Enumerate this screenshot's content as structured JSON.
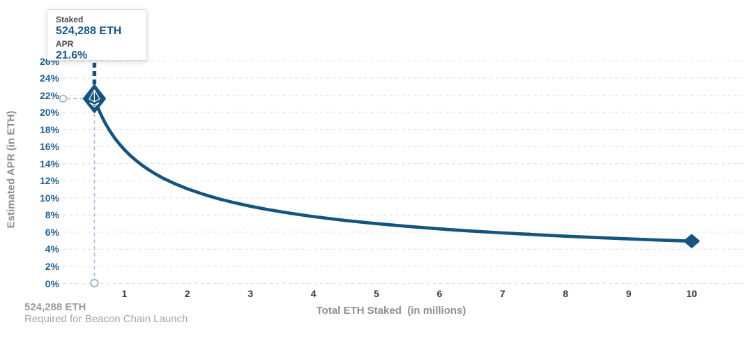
{
  "chart_data": {
    "type": "line",
    "title": "",
    "xlabel": "Total ETH Staked  (in millions)",
    "ylabel": "Estimated APR (in ETH)",
    "xlim": [
      0,
      10.85
    ],
    "ylim": [
      0,
      26
    ],
    "grid": "horizontal-dashed",
    "legend": "none",
    "x_ticks": [
      {
        "value": 1,
        "label": "1"
      },
      {
        "value": 2,
        "label": "2"
      },
      {
        "value": 3,
        "label": "3"
      },
      {
        "value": 4,
        "label": "4"
      },
      {
        "value": 5,
        "label": "5"
      },
      {
        "value": 6,
        "label": "6"
      },
      {
        "value": 7,
        "label": "7"
      },
      {
        "value": 8,
        "label": "8"
      },
      {
        "value": 9,
        "label": "9"
      },
      {
        "value": 10,
        "label": "10"
      }
    ],
    "y_ticks": [
      {
        "value": 0,
        "label": "0%"
      },
      {
        "value": 2,
        "label": "2%"
      },
      {
        "value": 4,
        "label": "4%"
      },
      {
        "value": 6,
        "label": "6%"
      },
      {
        "value": 8,
        "label": "8%"
      },
      {
        "value": 10,
        "label": "10%"
      },
      {
        "value": 12,
        "label": "12%"
      },
      {
        "value": 14,
        "label": "14%"
      },
      {
        "value": 16,
        "label": "16%"
      },
      {
        "value": 18,
        "label": "18%"
      },
      {
        "value": 20,
        "label": "20%"
      },
      {
        "value": 22,
        "label": "22%"
      },
      {
        "value": 24,
        "label": "24%"
      },
      {
        "value": 26,
        "label": "26%"
      }
    ],
    "series": [
      {
        "name": "Estimated APR",
        "color": "#15547f",
        "points": [
          [
            0.524288,
            21.6
          ],
          [
            0.55,
            21.09
          ],
          [
            0.6,
            20.19
          ],
          [
            0.65,
            19.4
          ],
          [
            0.7,
            18.69
          ],
          [
            0.75,
            18.06
          ],
          [
            0.8,
            17.49
          ],
          [
            0.85,
            16.96
          ],
          [
            0.9,
            16.49
          ],
          [
            0.95,
            16.05
          ],
          [
            1.0,
            15.64
          ],
          [
            1.1,
            14.91
          ],
          [
            1.2,
            14.28
          ],
          [
            1.3,
            13.72
          ],
          [
            1.4,
            13.22
          ],
          [
            1.5,
            12.77
          ],
          [
            1.6,
            12.36
          ],
          [
            1.8,
            11.66
          ],
          [
            2.0,
            11.06
          ],
          [
            2.25,
            10.43
          ],
          [
            2.5,
            9.89
          ],
          [
            2.75,
            9.43
          ],
          [
            3.0,
            9.03
          ],
          [
            3.25,
            8.67
          ],
          [
            3.5,
            8.36
          ],
          [
            3.75,
            8.08
          ],
          [
            4.0,
            7.82
          ],
          [
            4.5,
            7.37
          ],
          [
            5.0,
            6.99
          ],
          [
            5.5,
            6.67
          ],
          [
            6.0,
            6.38
          ],
          [
            6.5,
            6.13
          ],
          [
            7.0,
            5.91
          ],
          [
            7.5,
            5.71
          ],
          [
            8.0,
            5.53
          ],
          [
            8.5,
            5.36
          ],
          [
            9.0,
            5.21
          ],
          [
            9.5,
            5.07
          ],
          [
            10.0,
            4.95
          ]
        ]
      }
    ],
    "highlight_point": {
      "x": 0.524288,
      "apr": 21.6,
      "marker": "ethereum-diamond"
    },
    "end_point": {
      "x": 10.0,
      "apr": 4.95,
      "marker": "diamond"
    }
  },
  "tooltip": {
    "staked_label": "Staked",
    "staked_value": "524,288 ETH",
    "apr_label": "APR",
    "apr_value": "21.6%"
  },
  "annotation": {
    "line1": "524,288 ETH",
    "line2": "Required for Beacon Chain Launch"
  },
  "colors": {
    "curve_blue": "#15547f",
    "axis_label_blue": "#1d5f99",
    "tooltip_value_blue": "#175a8c",
    "grid_gray": "#e0e0e0",
    "axis_title_gray": "#8f8f8f",
    "x_tick_gray": "#3b3b3b",
    "annotation_gray": "#9c9c9c",
    "dropline_light_blue": "#a5bed3",
    "tooltip_border_gray": "#dcdcdc"
  }
}
